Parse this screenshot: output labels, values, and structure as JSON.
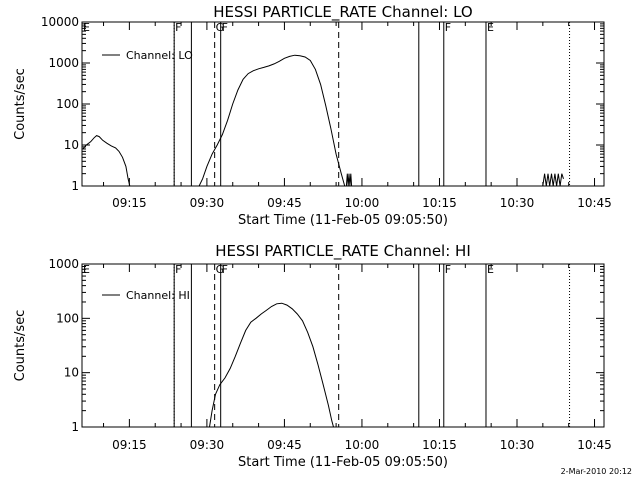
{
  "stamp": "2-Mar-2010 20:12",
  "chart_data": [
    {
      "type": "line",
      "title": "HESSI PARTICLE_RATE Channel: LO",
      "xlabel": "Start Time (11-Feb-05 09:05:50)",
      "ylabel": "Counts/sec",
      "y_scale": "log",
      "xlim": [
        "09:05:50",
        "10:46:50"
      ],
      "ylim": [
        1,
        10000
      ],
      "x_ticks": [
        "09:15",
        "09:30",
        "09:45",
        "10:00",
        "10:15",
        "10:30",
        "10:45"
      ],
      "y_ticks": [
        "1",
        "10",
        "100",
        "1000",
        "10000"
      ],
      "legend": {
        "label": "Channel: LO",
        "placement": "top-left"
      },
      "grid": false,
      "markers": [
        {
          "time": "09:23:40",
          "style": "dotted",
          "label": ""
        },
        {
          "time": "09:23:40",
          "style": "solid",
          "label": "F"
        },
        {
          "time": "09:27:00",
          "style": "solid",
          "label": ""
        },
        {
          "time": "09:31:30",
          "style": "dashed",
          "label": "G"
        },
        {
          "time": "09:32:40",
          "style": "solid",
          "label": "F"
        },
        {
          "time": "09:55:30",
          "style": "dashed",
          "label": ""
        },
        {
          "time": "10:11:00",
          "style": "solid",
          "label": ""
        },
        {
          "time": "10:15:50",
          "style": "solid",
          "label": "F"
        },
        {
          "time": "10:24:00",
          "style": "solid",
          "label": "E"
        },
        {
          "time": "10:40:10",
          "style": "dotted",
          "label": ""
        }
      ],
      "corner_flag": "E",
      "series": [
        {
          "name": "Channel: LO",
          "segments": [
            [
              [
                "09:06:00",
                8
              ],
              [
                "09:06:40",
                10
              ],
              [
                "09:07:30",
                12
              ],
              [
                "09:08:10",
                15
              ],
              [
                "09:08:40",
                17
              ],
              [
                "09:09:10",
                16
              ],
              [
                "09:09:50",
                13
              ],
              [
                "09:10:40",
                11
              ],
              [
                "09:11:30",
                9.5
              ],
              [
                "09:12:20",
                8.5
              ],
              [
                "09:13:00",
                7
              ],
              [
                "09:13:40",
                5
              ],
              [
                "09:14:20",
                3
              ],
              [
                "09:14:45",
                1.5
              ],
              [
                "09:15:05",
                1
              ]
            ],
            [
              [
                "09:28:30",
                1
              ],
              [
                "09:29:10",
                1.5
              ],
              [
                "09:30:00",
                3
              ],
              [
                "09:31:00",
                6
              ],
              [
                "09:32:00",
                10
              ],
              [
                "09:33:00",
                18
              ],
              [
                "09:34:00",
                40
              ],
              [
                "09:35:00",
                100
              ],
              [
                "09:36:00",
                220
              ],
              [
                "09:37:00",
                400
              ],
              [
                "09:38:00",
                550
              ],
              [
                "09:39:00",
                650
              ],
              [
                "09:40:00",
                720
              ],
              [
                "09:41:00",
                780
              ],
              [
                "09:42:00",
                850
              ],
              [
                "09:43:00",
                950
              ],
              [
                "09:44:00",
                1100
              ],
              [
                "09:45:00",
                1300
              ],
              [
                "09:46:00",
                1450
              ],
              [
                "09:47:00",
                1550
              ],
              [
                "09:48:00",
                1500
              ],
              [
                "09:49:00",
                1400
              ],
              [
                "09:50:00",
                1150
              ],
              [
                "09:51:00",
                700
              ],
              [
                "09:52:00",
                300
              ],
              [
                "09:53:00",
                90
              ],
              [
                "09:54:00",
                25
              ],
              [
                "09:55:00",
                6
              ],
              [
                "09:56:00",
                2
              ],
              [
                "09:56:40",
                1
              ]
            ],
            [
              [
                "09:57:00",
                1
              ],
              [
                "09:57:10",
                2
              ],
              [
                "09:57:20",
                1
              ],
              [
                "09:57:30",
                2
              ],
              [
                "09:57:40",
                1
              ],
              [
                "09:57:50",
                2
              ],
              [
                "09:58:00",
                1
              ]
            ],
            [
              [
                "10:35:00",
                1
              ],
              [
                "10:35:20",
                2
              ],
              [
                "10:35:40",
                1
              ],
              [
                "10:36:00",
                2
              ],
              [
                "10:36:20",
                1
              ],
              [
                "10:36:40",
                2
              ],
              [
                "10:37:00",
                1
              ],
              [
                "10:37:20",
                2
              ],
              [
                "10:37:40",
                1
              ],
              [
                "10:38:00",
                2
              ],
              [
                "10:38:20",
                1
              ],
              [
                "10:38:40",
                2
              ],
              [
                "10:39:00",
                1.5
              ]
            ]
          ]
        }
      ]
    },
    {
      "type": "line",
      "title": "HESSI PARTICLE_RATE Channel: HI",
      "xlabel": "Start Time (11-Feb-05 09:05:50)",
      "ylabel": "Counts/sec",
      "y_scale": "log",
      "xlim": [
        "09:05:50",
        "10:46:50"
      ],
      "ylim": [
        1,
        1000
      ],
      "x_ticks": [
        "09:15",
        "09:30",
        "09:45",
        "10:00",
        "10:15",
        "10:30",
        "10:45"
      ],
      "y_ticks": [
        "1",
        "10",
        "100",
        "1000"
      ],
      "legend": {
        "label": "Channel: HI",
        "placement": "top-left"
      },
      "grid": false,
      "markers": [
        {
          "time": "09:23:40",
          "style": "dotted",
          "label": ""
        },
        {
          "time": "09:23:40",
          "style": "solid",
          "label": "F"
        },
        {
          "time": "09:27:00",
          "style": "solid",
          "label": ""
        },
        {
          "time": "09:31:30",
          "style": "dashed",
          "label": "G"
        },
        {
          "time": "09:32:40",
          "style": "solid",
          "label": "F"
        },
        {
          "time": "09:55:30",
          "style": "dashed",
          "label": ""
        },
        {
          "time": "10:11:00",
          "style": "solid",
          "label": ""
        },
        {
          "time": "10:15:50",
          "style": "solid",
          "label": "F"
        },
        {
          "time": "10:24:00",
          "style": "solid",
          "label": "E"
        },
        {
          "time": "10:40:10",
          "style": "dotted",
          "label": ""
        }
      ],
      "corner_flag": "E",
      "series": [
        {
          "name": "Channel: HI",
          "segments": [
            [
              [
                "09:30:30",
                1
              ],
              [
                "09:31:00",
                2
              ],
              [
                "09:31:40",
                4
              ],
              [
                "09:32:30",
                6
              ],
              [
                "09:33:30",
                8
              ],
              [
                "09:34:30",
                12
              ],
              [
                "09:35:30",
                20
              ],
              [
                "09:36:30",
                35
              ],
              [
                "09:37:30",
                60
              ],
              [
                "09:38:30",
                85
              ],
              [
                "09:39:30",
                100
              ],
              [
                "09:40:30",
                120
              ],
              [
                "09:41:30",
                140
              ],
              [
                "09:42:30",
                165
              ],
              [
                "09:43:30",
                185
              ],
              [
                "09:44:30",
                190
              ],
              [
                "09:45:30",
                175
              ],
              [
                "09:46:30",
                150
              ],
              [
                "09:47:30",
                120
              ],
              [
                "09:48:30",
                90
              ],
              [
                "09:49:30",
                55
              ],
              [
                "09:50:30",
                30
              ],
              [
                "09:51:30",
                14
              ],
              [
                "09:52:30",
                6
              ],
              [
                "09:53:30",
                2.5
              ],
              [
                "09:54:10",
                1.3
              ],
              [
                "09:54:30",
                1
              ]
            ]
          ]
        }
      ]
    }
  ]
}
